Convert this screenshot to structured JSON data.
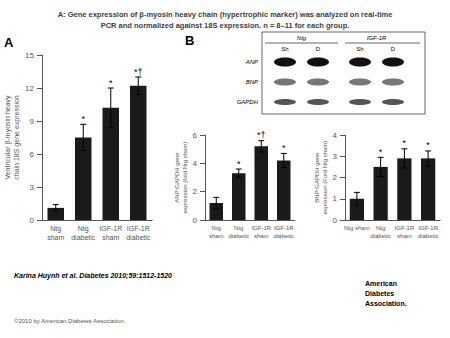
{
  "chart_data": [
    {
      "type": "bar",
      "title": "A: Gene expression of β-myosin heavy chain (hypertrophic marker) was analyzed on real-time\nPCR and normalized against 18S expression. n = 8–11 for each group.",
      "panel": "A",
      "categories": [
        "Ntg\nsham",
        "Ntg\ndiabetic",
        "IGF-1R\nsham",
        "IGF-1R\ndiabetic"
      ],
      "values": [
        1.1,
        7.5,
        10.2,
        12.2
      ],
      "errors": [
        0.3,
        1.2,
        1.8,
        0.8
      ],
      "significance": [
        null,
        "*",
        "*",
        "*†"
      ],
      "ylabel": "Ventricular β-myosin heavy\nchain:18S gene expression",
      "ylim": [
        0,
        15
      ],
      "yticks": [
        0,
        3,
        6,
        9,
        12,
        15
      ],
      "color": "#1a1a1a",
      "grid": false,
      "footer_text": "Karina Huynh et al. Diabetes 2010;59:1512-1520",
      "copyright_text": "©2010 by American Diabetes Association.",
      "logo_text": [
        "American",
        "Diabetes",
        "Association."
      ]
    },
    {
      "type": "bar",
      "panel": "B",
      "categories": [
        "Ntg\nsham",
        "Ntg\ndiabetic",
        "IGF-1R\nsham",
        "IGF-1R\ndiabetic"
      ],
      "values": [
        1.2,
        3.3,
        5.2,
        4.2
      ],
      "errors": [
        0.4,
        0.3,
        0.4,
        0.5
      ],
      "significance": [
        null,
        "*",
        "*†",
        "*"
      ],
      "ylabel": "ANP:GAPDH gene\nexpression (fold Ntg sham)",
      "ylim": [
        0,
        6
      ],
      "yticks": [
        0,
        2,
        4,
        6
      ],
      "color": "#1a1a1a",
      "grid": false,
      "blot": {
        "groups": [
          "Ntg",
          "IGF-1R"
        ],
        "lanes": [
          "Sh",
          "D",
          "Sh",
          "D"
        ],
        "rows": [
          "ANP",
          "BNP",
          "GAPDH"
        ],
        "colors": [
          "#111111",
          "#777777",
          "#555555"
        ]
      }
    },
    {
      "type": "bar",
      "categories": [
        "Ntg sham",
        "Ntg\ndiabetic",
        "IGF-1R\nsham",
        "IGF-1R\ndiabetic"
      ],
      "values": [
        1.0,
        2.5,
        2.9,
        2.9
      ],
      "errors": [
        0.3,
        0.45,
        0.45,
        0.35
      ],
      "significance": [
        null,
        "*",
        "*",
        "*"
      ],
      "ylabel": "BNP:GAPDH gene\nexpression (Fold Ntg sham)",
      "ylim": [
        0,
        4
      ],
      "yticks": [
        0,
        1,
        2,
        3,
        4
      ],
      "color": "#1a1a1a",
      "grid": false
    }
  ]
}
